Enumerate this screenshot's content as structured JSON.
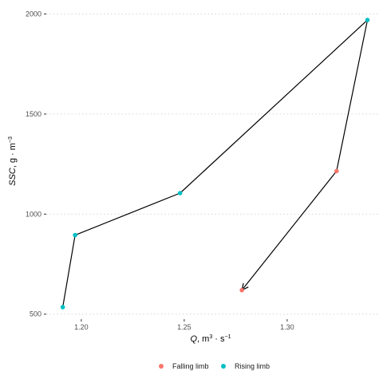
{
  "chart_data": {
    "type": "scatter",
    "xlim": [
      1.183,
      1.345
    ],
    "ylim": [
      475,
      2050
    ],
    "x_ticks": [
      1.2,
      1.25,
      1.3
    ],
    "x_tick_labels": [
      "1.20",
      "1.25",
      "1.30"
    ],
    "y_ticks": [
      500,
      1000,
      1500,
      2000
    ],
    "y_tick_labels": [
      "500",
      "1000",
      "1500",
      "2000"
    ],
    "xlabel": {
      "var": "Q",
      "rest": ", m",
      "sup1": "3",
      "mid": " · s",
      "sup2": "−1"
    },
    "ylabel": {
      "var": "SSC",
      "rest": ", g · m",
      "sup": "−3"
    },
    "grid": "horizontal dotted",
    "legend_position": "bottom",
    "series": [
      {
        "name": "Falling limb",
        "color": "#F8766D"
      },
      {
        "name": "Rising limb",
        "color": "#00BFC4"
      }
    ],
    "points": [
      {
        "x": 1.191,
        "y": 535,
        "series": "Rising limb"
      },
      {
        "x": 1.197,
        "y": 895,
        "series": "Rising limb"
      },
      {
        "x": 1.248,
        "y": 1105,
        "series": "Rising limb"
      },
      {
        "x": 1.339,
        "y": 1970,
        "series": "Rising limb"
      },
      {
        "x": 1.324,
        "y": 1215,
        "series": "Falling limb"
      },
      {
        "x": 1.278,
        "y": 620,
        "series": "Falling limb"
      }
    ],
    "path_line_color": "#000000",
    "path_end_arrow": true
  }
}
